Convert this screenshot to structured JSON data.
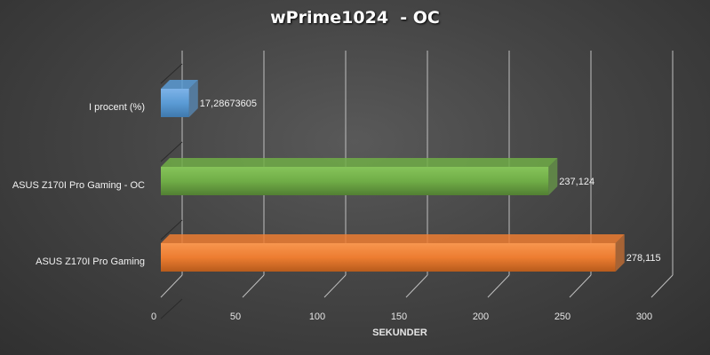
{
  "chart_data": {
    "type": "bar",
    "orientation": "horizontal",
    "title": "wPrime1024  - OC",
    "xlabel": "SEKUNDER",
    "ylabel": "",
    "xlim": [
      0,
      300
    ],
    "x_ticks": [
      "0",
      "50",
      "100",
      "150",
      "200",
      "250",
      "300"
    ],
    "grid": true,
    "legend": "none",
    "categories": [
      "I procent (%)",
      "ASUS Z170I Pro Gaming - OC",
      "ASUS Z170I Pro Gaming"
    ],
    "values": [
      17.28673605,
      237.124,
      278.115
    ],
    "data_labels": [
      "17,28673605",
      "237,124",
      "278,115"
    ],
    "colors": [
      "#5b9bd5",
      "#70ad47",
      "#ed7d31"
    ]
  }
}
